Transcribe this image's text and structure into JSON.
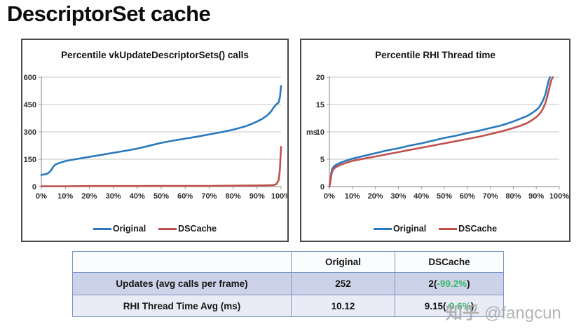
{
  "page": {
    "title": "DescriptorSet cache"
  },
  "colors": {
    "original_line": "#2778be",
    "dscache_line": "#c0504d",
    "gridline": "#c6c6c6",
    "axis": "#9a9a9a",
    "table_border": "#7b96c6",
    "row1_bg": "#ccd3e8",
    "row2_bg": "#e9ecf6",
    "delta_green": "#3cb96a"
  },
  "chart_data": [
    {
      "type": "line",
      "title": "Percentile vkUpdateDescriptorSets() calls",
      "xlabel": "percentile",
      "ylabel": "",
      "ylim": [
        0,
        600
      ],
      "yticks": [
        0,
        150,
        300,
        450,
        600
      ],
      "xticks": [
        "0%",
        "10%",
        "20%",
        "30%",
        "40%",
        "50%",
        "60%",
        "70%",
        "80%",
        "90%",
        "100%"
      ],
      "grid": "horizontal",
      "legend_position": "bottom",
      "series": [
        {
          "name": "Original",
          "color": "#2778be",
          "x": [
            0,
            1,
            2,
            3,
            4,
            5,
            6,
            8,
            10,
            15,
            20,
            25,
            30,
            35,
            40,
            45,
            50,
            55,
            60,
            65,
            70,
            75,
            80,
            85,
            88,
            90,
            92,
            94,
            95,
            96,
            97,
            98,
            99,
            99.6,
            100
          ],
          "y": [
            64,
            66,
            69,
            75,
            88,
            110,
            122,
            132,
            140,
            152,
            163,
            174,
            185,
            196,
            208,
            224,
            240,
            252,
            263,
            274,
            286,
            298,
            312,
            330,
            345,
            357,
            370,
            388,
            400,
            415,
            435,
            450,
            462,
            495,
            552
          ]
        },
        {
          "name": "DSCache",
          "color": "#c0504d",
          "x": [
            0,
            10,
            20,
            30,
            40,
            50,
            60,
            70,
            80,
            90,
            95,
            97,
            98,
            99,
            99.5,
            100
          ],
          "y": [
            2,
            2,
            3,
            3,
            3,
            4,
            4,
            4,
            5,
            6,
            7,
            9,
            13,
            35,
            90,
            218
          ]
        }
      ]
    },
    {
      "type": "line",
      "title": "Percentile RHI Thread time",
      "xlabel": "percentile",
      "ylabel": "ms",
      "ylim": [
        0,
        20
      ],
      "yticks": [
        0,
        5,
        10,
        15,
        20
      ],
      "xticks": [
        "0%",
        "10%",
        "20%",
        "30%",
        "40%",
        "50%",
        "60%",
        "70%",
        "80%",
        "90%",
        "100%"
      ],
      "grid": "horizontal",
      "legend_position": "bottom",
      "series": [
        {
          "name": "Original",
          "color": "#2778be",
          "x": [
            0,
            0.4,
            0.8,
            1.2,
            2,
            3,
            5,
            7,
            10,
            15,
            20,
            25,
            30,
            35,
            40,
            45,
            50,
            55,
            60,
            65,
            70,
            75,
            80,
            83,
            86,
            88,
            90,
            91,
            92,
            93,
            94,
            94.7,
            95.4,
            96
          ],
          "y": [
            0,
            1.0,
            2.4,
            3.2,
            3.7,
            4.0,
            4.4,
            4.7,
            5.1,
            5.6,
            6.1,
            6.6,
            7.0,
            7.5,
            7.9,
            8.4,
            8.9,
            9.3,
            9.8,
            10.2,
            10.7,
            11.2,
            11.9,
            12.4,
            12.9,
            13.4,
            14.0,
            14.4,
            15.0,
            15.8,
            16.9,
            18.2,
            19.4,
            20
          ]
        },
        {
          "name": "DSCache",
          "color": "#c0504d",
          "x": [
            0,
            0.4,
            0.8,
            1.2,
            2,
            3,
            5,
            7,
            10,
            15,
            20,
            25,
            30,
            35,
            40,
            45,
            50,
            55,
            60,
            65,
            70,
            75,
            80,
            83,
            86,
            88,
            90,
            91,
            92,
            93,
            94,
            95,
            96,
            96.6,
            97.2
          ],
          "y": [
            0,
            0.8,
            2.0,
            2.8,
            3.3,
            3.6,
            4.0,
            4.3,
            4.7,
            5.1,
            5.5,
            5.9,
            6.3,
            6.7,
            7.1,
            7.5,
            7.9,
            8.3,
            8.7,
            9.1,
            9.6,
            10.1,
            10.7,
            11.1,
            11.6,
            12.1,
            12.7,
            13.1,
            13.6,
            14.3,
            15.3,
            16.8,
            18.6,
            19.5,
            20
          ]
        }
      ]
    },
    {
      "type": "table",
      "headers": [
        "",
        "Original",
        "DSCache"
      ],
      "rows": [
        {
          "label": "Updates (avg calls per frame)",
          "original": "252",
          "dscache_prefix": "2(",
          "dscache_delta": "-99.2%",
          "dscache_suffix": ")"
        },
        {
          "label": "RHI Thread Time Avg (ms)",
          "original": "10.12",
          "dscache_prefix": "9.15(",
          "dscache_delta": "-9.6%",
          "dscache_suffix": ")"
        }
      ]
    }
  ],
  "watermark": {
    "logo": "知乎",
    "handle": "@fangcun"
  }
}
